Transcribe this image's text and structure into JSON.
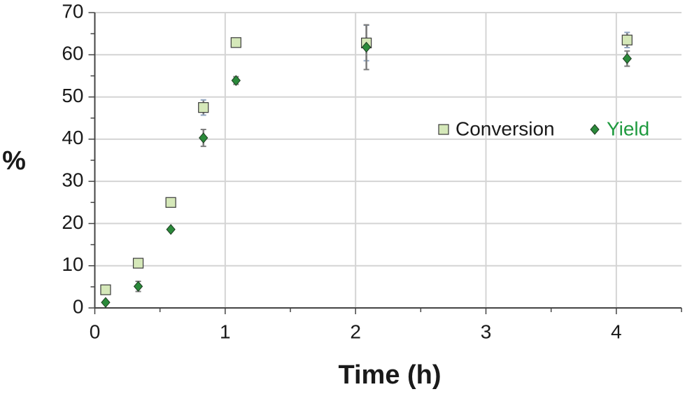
{
  "chart_data": {
    "type": "scatter",
    "xlabel": "Time (h)",
    "ylabel": "%",
    "xlim": [
      0,
      4.5
    ],
    "xticks": [
      0,
      1,
      2,
      3,
      4
    ],
    "ylim": [
      0,
      70
    ],
    "yticks": [
      0,
      10,
      20,
      30,
      40,
      50,
      60,
      70
    ],
    "grid": true,
    "legend_position": "center-right",
    "series": [
      {
        "name": "Conversion",
        "color": "#d5e8b9",
        "marker": "square",
        "legend_text_color": "#1a1a1a",
        "x": [
          0.083,
          0.333,
          0.583,
          0.833,
          1.083,
          2.083,
          4.083
        ],
        "values": [
          4.3,
          10.6,
          25,
          47.5,
          62.9,
          62.8,
          63.5
        ],
        "errors": [
          0.3,
          0.5,
          0.3,
          1.8,
          1.0,
          4.2,
          1.8
        ]
      },
      {
        "name": "Yield",
        "color": "#2a8a3a",
        "marker": "diamond",
        "legend_text_color": "#1f9a3f",
        "x": [
          0.083,
          0.333,
          0.583,
          0.833,
          1.083,
          2.083,
          4.083
        ],
        "values": [
          1.3,
          5.1,
          18.6,
          40.3,
          53.9,
          61.8,
          59.1
        ],
        "errors": [
          0.3,
          1.2,
          0.3,
          2.0,
          0.9,
          5.3,
          1.8
        ]
      }
    ]
  }
}
